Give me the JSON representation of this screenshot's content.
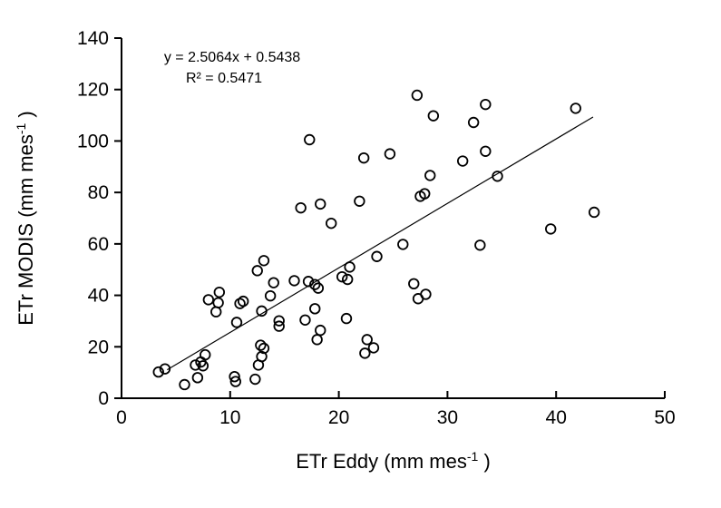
{
  "chart_data": {
    "type": "scatter",
    "title": "",
    "xlabel_base": "ETr Eddy (mm mes",
    "xlabel_sup": "-1",
    "xlabel_end": " )",
    "ylabel_base": "ETr MODIS (mm mes",
    "ylabel_sup": "-1",
    "ylabel_end": " )",
    "xlim": [
      0,
      50
    ],
    "ylim": [
      0,
      140
    ],
    "x_ticks": [
      0,
      10,
      20,
      30,
      40,
      50
    ],
    "y_ticks": [
      0,
      20,
      40,
      60,
      80,
      100,
      120,
      140
    ],
    "grid": false,
    "legend": null,
    "annotation": [
      "y = 2.5064x + 0.5438",
      "R² = 0.5471"
    ],
    "trendline": {
      "slope": 2.5064,
      "intercept": 0.5438,
      "r_squared": 0.5471,
      "x_start": 4.2,
      "x_end": 43.4
    },
    "points": [
      [
        3.4,
        10.2
      ],
      [
        4.0,
        11.4
      ],
      [
        5.8,
        5.3
      ],
      [
        7.0,
        8.0
      ],
      [
        6.8,
        12.9
      ],
      [
        7.5,
        12.6
      ],
      [
        7.3,
        14.1
      ],
      [
        7.7,
        16.9
      ],
      [
        10.4,
        8.4
      ],
      [
        10.5,
        6.5
      ],
      [
        12.3,
        7.4
      ],
      [
        12.6,
        12.9
      ],
      [
        12.9,
        16.2
      ],
      [
        12.8,
        20.6
      ],
      [
        13.1,
        19.4
      ],
      [
        9.0,
        41.2
      ],
      [
        8.0,
        38.3
      ],
      [
        8.9,
        37.1
      ],
      [
        8.7,
        33.6
      ],
      [
        10.9,
        36.8
      ],
      [
        11.2,
        37.7
      ],
      [
        10.6,
        29.5
      ],
      [
        12.9,
        33.9
      ],
      [
        13.7,
        39.8
      ],
      [
        14.5,
        30.1
      ],
      [
        14.5,
        28.0
      ],
      [
        12.5,
        49.6
      ],
      [
        13.1,
        53.5
      ],
      [
        14.0,
        44.9
      ],
      [
        15.9,
        45.7
      ],
      [
        17.2,
        45.4
      ],
      [
        17.8,
        44.2
      ],
      [
        18.1,
        42.8
      ],
      [
        17.8,
        34.8
      ],
      [
        16.9,
        30.4
      ],
      [
        20.7,
        31.0
      ],
      [
        18.3,
        26.4
      ],
      [
        18.0,
        22.8
      ],
      [
        22.6,
        22.8
      ],
      [
        23.2,
        19.6
      ],
      [
        22.4,
        17.5
      ],
      [
        20.3,
        47.2
      ],
      [
        20.8,
        46.2
      ],
      [
        21.0,
        51.0
      ],
      [
        23.5,
        55.1
      ],
      [
        25.9,
        59.8
      ],
      [
        33.0,
        59.5
      ],
      [
        26.9,
        44.5
      ],
      [
        28.0,
        40.4
      ],
      [
        27.3,
        38.7
      ],
      [
        16.5,
        74.0
      ],
      [
        18.3,
        75.5
      ],
      [
        19.3,
        68.0
      ],
      [
        21.9,
        76.6
      ],
      [
        27.5,
        78.5
      ],
      [
        27.9,
        79.5
      ],
      [
        17.3,
        100.5
      ],
      [
        22.3,
        93.4
      ],
      [
        24.7,
        95.0
      ],
      [
        28.4,
        86.6
      ],
      [
        34.6,
        86.3
      ],
      [
        31.4,
        92.2
      ],
      [
        33.5,
        96.0
      ],
      [
        28.7,
        109.8
      ],
      [
        32.4,
        107.2
      ],
      [
        33.5,
        114.2
      ],
      [
        27.2,
        117.8
      ],
      [
        41.8,
        112.7
      ],
      [
        43.5,
        72.3
      ],
      [
        39.5,
        65.8
      ]
    ]
  },
  "colors": {
    "background": "#ffffff",
    "axis": "#000000",
    "marker_stroke": "#000000",
    "trend_line": "#000000",
    "text": "#000000"
  }
}
